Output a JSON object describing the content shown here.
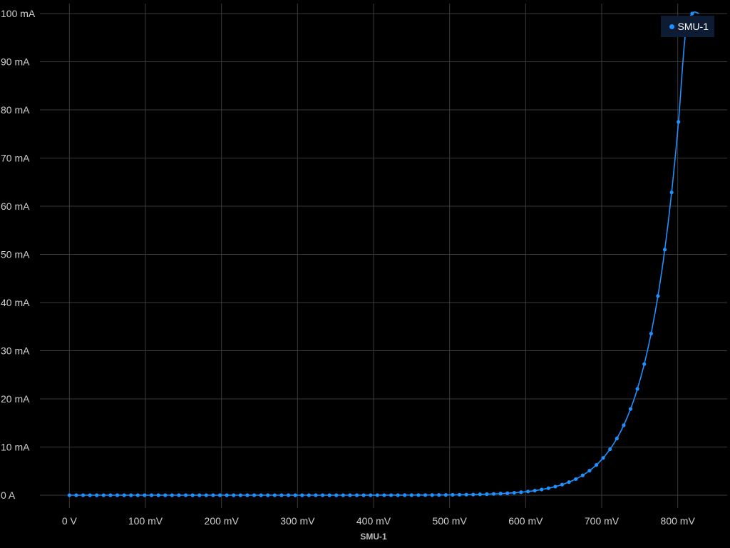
{
  "chart_data": {
    "type": "line",
    "title": "",
    "xlabel": "SMU-1",
    "ylabel": "",
    "xlim": [
      -0.035,
      0.865
    ],
    "ylim": [
      0,
      0.1
    ],
    "x_ticks": [
      {
        "value": 0,
        "label": "0 V"
      },
      {
        "value": 0.1,
        "label": "100 mV"
      },
      {
        "value": 0.2,
        "label": "200 mV"
      },
      {
        "value": 0.3,
        "label": "300 mV"
      },
      {
        "value": 0.4,
        "label": "400 mV"
      },
      {
        "value": 0.5,
        "label": "500 mV"
      },
      {
        "value": 0.6,
        "label": "600 mV"
      },
      {
        "value": 0.7,
        "label": "700 mV"
      },
      {
        "value": 0.8,
        "label": "800 mV"
      }
    ],
    "y_ticks": [
      {
        "value": 0,
        "label": "0 A"
      },
      {
        "value": 0.01,
        "label": "10 mA"
      },
      {
        "value": 0.02,
        "label": "20 mA"
      },
      {
        "value": 0.03,
        "label": "30 mA"
      },
      {
        "value": 0.04,
        "label": "40 mA"
      },
      {
        "value": 0.05,
        "label": "50 mA"
      },
      {
        "value": 0.06,
        "label": "60 mA"
      },
      {
        "value": 0.07,
        "label": "70 mA"
      },
      {
        "value": 0.08,
        "label": "80 mA"
      },
      {
        "value": 0.09,
        "label": "90 mA"
      },
      {
        "value": 0.1,
        "label": "100 mA"
      }
    ],
    "grid": true,
    "legend": {
      "placement": "top-right"
    },
    "series": [
      {
        "name": "SMU-1",
        "color": "#1e90ff",
        "x": [
          0,
          0.009,
          0.018,
          0.027,
          0.036,
          0.045,
          0.054,
          0.063,
          0.072,
          0.081,
          0.09,
          0.099,
          0.108,
          0.117,
          0.126,
          0.135,
          0.144,
          0.153,
          0.162,
          0.171,
          0.18,
          0.189,
          0.198,
          0.207,
          0.216,
          0.225,
          0.234,
          0.243,
          0.252,
          0.261,
          0.27,
          0.279,
          0.288,
          0.297,
          0.306,
          0.315,
          0.324,
          0.333,
          0.342,
          0.351,
          0.36,
          0.369,
          0.378,
          0.387,
          0.396,
          0.405,
          0.414,
          0.423,
          0.432,
          0.441,
          0.45,
          0.459,
          0.468,
          0.477,
          0.486,
          0.495,
          0.504,
          0.513,
          0.522,
          0.531,
          0.54,
          0.549,
          0.558,
          0.567,
          0.576,
          0.585,
          0.594,
          0.603,
          0.612,
          0.621,
          0.63,
          0.639,
          0.648,
          0.657,
          0.666,
          0.675,
          0.684,
          0.693,
          0.702,
          0.711,
          0.72,
          0.729,
          0.738,
          0.747,
          0.756,
          0.765,
          0.774,
          0.783,
          0.792,
          0.801,
          0.81,
          0.819,
          0.828
        ],
        "y": [
          0,
          0,
          0,
          0,
          0,
          0,
          0,
          0,
          0,
          0,
          0,
          0,
          0,
          0,
          0,
          0,
          0,
          0,
          0,
          0,
          0,
          0,
          0,
          0,
          0,
          0,
          0,
          0,
          0,
          0,
          0,
          0,
          0,
          0,
          0,
          0,
          0,
          0,
          0,
          0,
          0,
          0,
          0,
          0,
          1e-05,
          1e-05,
          1e-05,
          1e-05,
          1e-05,
          2e-05,
          2e-05,
          3e-05,
          3e-05,
          4e-05,
          5e-05,
          6e-05,
          8e-05,
          0.0001,
          0.00012,
          0.00014,
          0.00018,
          0.00022,
          0.00027,
          0.00033,
          0.00041,
          0.00051,
          0.00063,
          0.00077,
          0.00095,
          0.00118,
          0.00145,
          0.00179,
          0.0022,
          0.00272,
          0.00335,
          0.00413,
          0.00509,
          0.00628,
          0.00775,
          0.00955,
          0.01178,
          0.01452,
          0.0179,
          0.02207,
          0.02721,
          0.03355,
          0.04136,
          0.05099,
          0.06287,
          0.07751,
          0.09556,
          0.1,
          0.1
        ]
      }
    ]
  }
}
